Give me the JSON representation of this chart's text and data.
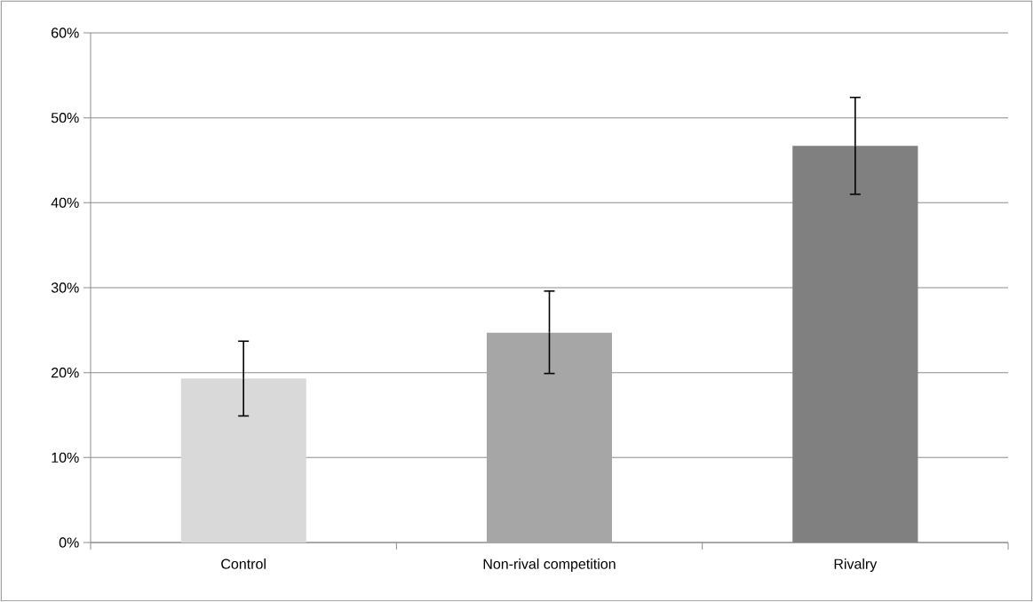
{
  "chart_data": {
    "type": "bar",
    "categories": [
      "Control",
      "Non-rival competition",
      "Rivalry"
    ],
    "values": [
      19.3,
      24.7,
      46.7
    ],
    "colors": [
      "#d9d9d9",
      "#a6a6a6",
      "#808080"
    ],
    "errors": [
      [
        14.9,
        23.7
      ],
      [
        19.9,
        29.6
      ],
      [
        41.0,
        52.4
      ]
    ],
    "ylim": [
      0,
      60
    ],
    "yticks": [
      {
        "value": 0,
        "label": "0%"
      },
      {
        "value": 10,
        "label": "10%"
      },
      {
        "value": 20,
        "label": "20%"
      },
      {
        "value": 30,
        "label": "30%"
      },
      {
        "value": 40,
        "label": "40%"
      },
      {
        "value": 50,
        "label": "50%"
      },
      {
        "value": 60,
        "label": "60%"
      }
    ],
    "grid": "y"
  }
}
